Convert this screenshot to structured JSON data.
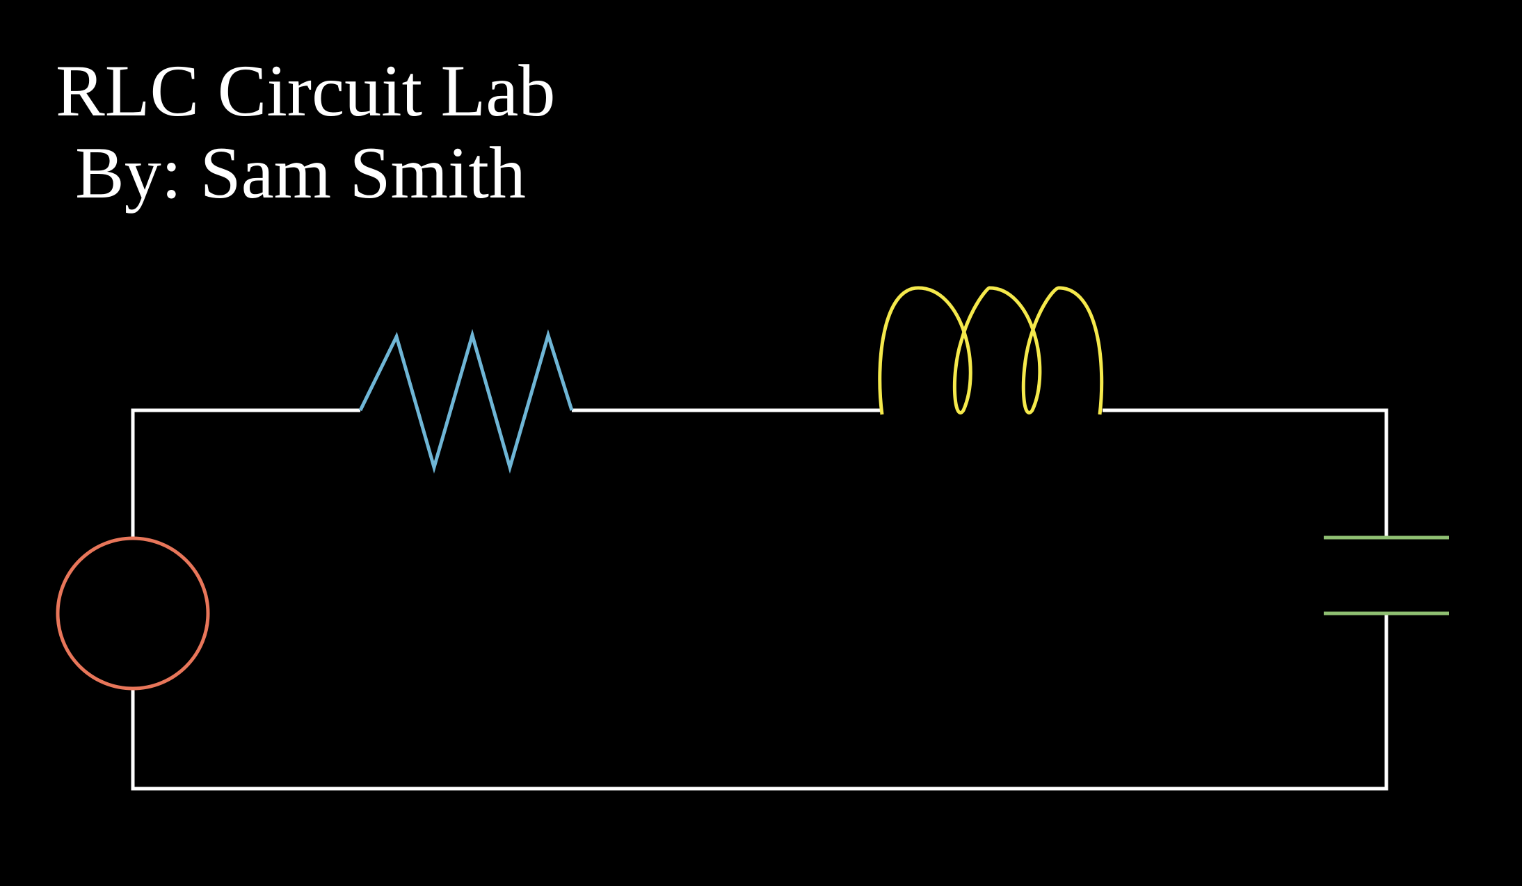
{
  "title": "RLC Circuit Lab",
  "author_line": "By: Sam Smith",
  "colors": {
    "background": "#000000",
    "text": "#ffffff",
    "wire": "#ffffff",
    "voltage_source": "#e8765a",
    "resistor": "#6fb6d6",
    "inductor": "#f5e94c",
    "capacitor": "#8fbf72"
  },
  "components": [
    "voltage-source",
    "resistor",
    "inductor",
    "capacitor"
  ]
}
